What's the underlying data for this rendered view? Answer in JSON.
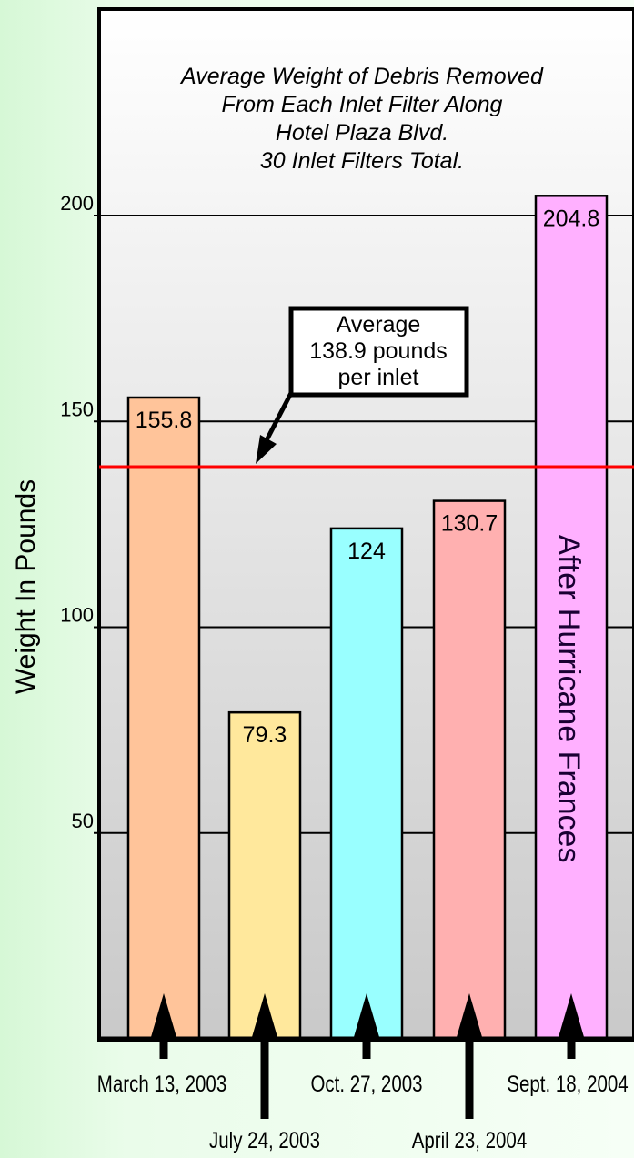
{
  "chart_data": {
    "type": "bar",
    "title": [
      "Average Weight of Debris Removed",
      "From Each Inlet Filter Along",
      "Hotel Plaza Blvd.",
      "30 Inlet Filters Total."
    ],
    "ylabel": "Weight In Pounds",
    "xlabel": "",
    "ylim": [
      0,
      250
    ],
    "yticks": [
      50,
      100,
      150,
      200
    ],
    "grid": true,
    "categories": [
      "March 13, 2003",
      "July 24, 2003",
      "Oct. 27, 2003",
      "April 23, 2004",
      "Sept. 18, 2004"
    ],
    "values": [
      155.8,
      79.3,
      124,
      130.7,
      204.8
    ],
    "value_labels": [
      "155.8",
      "79.3",
      "124",
      "130.7",
      "204.8"
    ],
    "bar_colors": [
      "#ffc49a",
      "#ffe89c",
      "#99ffff",
      "#ffb0b0",
      "#ffb0ff"
    ],
    "average": {
      "value": 138.9,
      "color": "#ff0000",
      "label_lines": [
        "Average",
        "138.9 pounds",
        "per inlet"
      ]
    },
    "annotation": "After Hurricane Frances"
  }
}
